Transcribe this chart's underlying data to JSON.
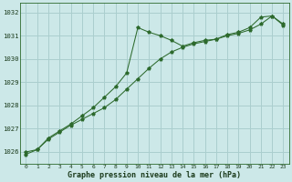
{
  "line1_x": [
    0,
    1,
    2,
    3,
    4,
    5,
    6,
    7,
    8,
    9,
    10,
    11,
    12,
    13,
    14,
    15,
    16,
    17,
    18,
    19,
    20,
    21,
    22,
    23
  ],
  "line1_y": [
    1026.0,
    1026.1,
    1026.6,
    1026.9,
    1027.2,
    1027.55,
    1027.9,
    1028.35,
    1028.8,
    1029.4,
    1031.35,
    1031.15,
    1031.0,
    1030.8,
    1030.55,
    1030.7,
    1030.8,
    1030.85,
    1031.05,
    1031.15,
    1031.35,
    1031.8,
    1031.85,
    1031.5
  ],
  "line2_x": [
    0,
    1,
    2,
    3,
    4,
    5,
    6,
    7,
    8,
    9,
    10,
    11,
    12,
    13,
    14,
    15,
    16,
    17,
    18,
    19,
    20,
    21,
    22,
    23
  ],
  "line2_y": [
    1025.9,
    1026.1,
    1026.55,
    1026.85,
    1027.15,
    1027.4,
    1027.65,
    1027.9,
    1028.25,
    1028.7,
    1029.15,
    1029.6,
    1030.0,
    1030.3,
    1030.5,
    1030.65,
    1030.75,
    1030.85,
    1031.0,
    1031.1,
    1031.25,
    1031.5,
    1031.85,
    1031.45
  ],
  "line_color": "#2d6a2d",
  "bg_color": "#cce8e8",
  "grid_color": "#aacece",
  "ylabel_ticks": [
    1026,
    1027,
    1028,
    1029,
    1030,
    1031,
    1032
  ],
  "xlabel": "Graphe pression niveau de la mer (hPa)",
  "ylim": [
    1025.5,
    1032.4
  ],
  "xlim": [
    -0.5,
    23.5
  ]
}
